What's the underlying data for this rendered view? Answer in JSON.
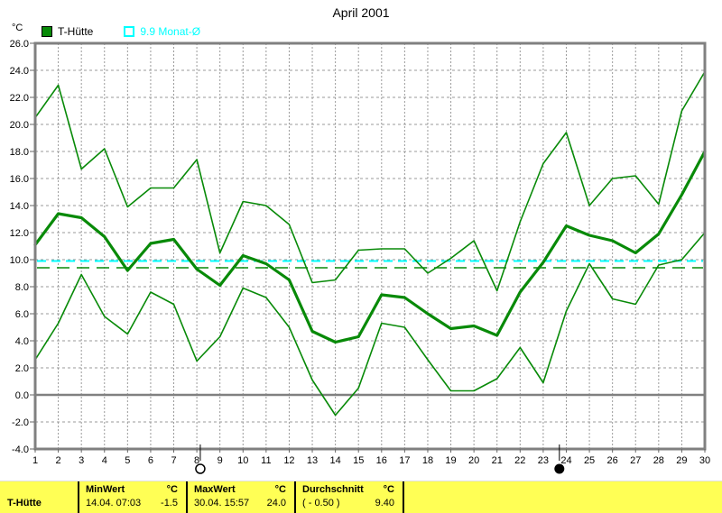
{
  "title": "April 2001",
  "y_axis_unit": "°C",
  "legend": [
    {
      "label": "T-Hütte",
      "swatch": "filled-square",
      "color": "#088a08"
    },
    {
      "label": "9.9 Monat-Ø",
      "swatch": "outline-square",
      "color": "#00ffff"
    }
  ],
  "chart_data": {
    "type": "line",
    "title": "April 2001",
    "ylabel": "°C",
    "ylim": [
      -4,
      26
    ],
    "grid": true,
    "x": [
      1,
      2,
      3,
      4,
      5,
      6,
      7,
      8,
      9,
      10,
      11,
      12,
      13,
      14,
      15,
      16,
      17,
      18,
      19,
      20,
      21,
      22,
      23,
      24,
      25,
      26,
      27,
      28,
      29,
      30
    ],
    "x_tick_labels": [
      "1",
      "2",
      "3",
      "4",
      "5",
      "6",
      "7",
      "8",
      "9",
      "10",
      "11",
      "12",
      "13",
      "14",
      "15",
      "16",
      "17",
      "18",
      "19",
      "20",
      "21",
      "22",
      "23",
      "24",
      "25",
      "26",
      "27",
      "28",
      "29",
      "30"
    ],
    "y_ticks": [
      26,
      24,
      22,
      20,
      18,
      16,
      14,
      12,
      10,
      8,
      6,
      4,
      2,
      0,
      -2,
      -4
    ],
    "y_tick_labels": [
      "26.0",
      "24.0",
      "22.0",
      "20.0",
      "18.0",
      "16.0",
      "14.0",
      "12.0",
      "10.0",
      "8.0",
      "6.0",
      "4.0",
      "2.0",
      "0.0",
      "-2.0",
      "-4.0"
    ],
    "series": [
      {
        "name": "daily-max",
        "color": "#088a08",
        "width": 1.6,
        "values": [
          20.5,
          22.9,
          16.7,
          18.2,
          13.9,
          15.3,
          15.3,
          17.4,
          10.5,
          14.3,
          14.0,
          12.6,
          8.3,
          8.5,
          10.7,
          10.8,
          10.8,
          9.0,
          10.1,
          11.4,
          7.7,
          12.8,
          17.1,
          19.4,
          14.0,
          16.0,
          16.2,
          14.1,
          21.0,
          23.9
        ]
      },
      {
        "name": "t-huette-mean",
        "color": "#088a08",
        "width": 3.2,
        "values": [
          11.1,
          13.4,
          13.1,
          11.7,
          9.2,
          11.2,
          11.5,
          9.3,
          8.1,
          10.3,
          9.7,
          8.5,
          4.7,
          3.9,
          4.3,
          7.4,
          7.2,
          6.0,
          4.9,
          5.1,
          4.4,
          7.6,
          9.8,
          12.5,
          11.8,
          11.4,
          10.5,
          11.9,
          14.8,
          18.0
        ]
      },
      {
        "name": "daily-min",
        "color": "#088a08",
        "width": 1.6,
        "values": [
          2.6,
          5.3,
          8.9,
          5.8,
          4.5,
          7.6,
          6.7,
          2.5,
          4.3,
          7.9,
          7.2,
          5.0,
          1.1,
          -1.5,
          0.5,
          5.3,
          5.0,
          2.6,
          0.3,
          0.3,
          1.2,
          3.5,
          0.9,
          6.2,
          9.7,
          7.1,
          6.7,
          9.6,
          10.0,
          12.0
        ]
      }
    ],
    "reference_lines": [
      {
        "name": "monat-avg",
        "value": 9.9,
        "color": "#00ffff",
        "dash": "10,6",
        "width": 2
      },
      {
        "name": "durchschnitt",
        "value": 9.4,
        "color": "#088a08",
        "dash": "14,8",
        "width": 1.4
      }
    ],
    "event_markers": [
      {
        "day": 8.15,
        "symbol": "open-circle"
      },
      {
        "day": 23.7,
        "symbol": "filled-circle"
      }
    ],
    "legend_position": "top-left"
  },
  "status_bar": {
    "row_label": "T-Hütte",
    "columns": [
      {
        "header": "MinWert",
        "unit": "°C",
        "value_left": "14.04.  07:03",
        "value_right": "-1.5"
      },
      {
        "header": "MaxWert",
        "unit": "°C",
        "value_left": "30.04.  15:57",
        "value_right": "24.0"
      },
      {
        "header": "Durchschnitt",
        "unit": "°C",
        "value_left": "( - 0.50 )",
        "value_right": "9.40"
      }
    ],
    "bg_color": "#ffff55"
  }
}
